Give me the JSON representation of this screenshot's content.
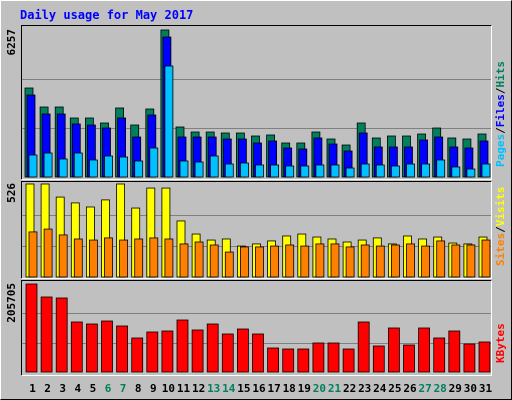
{
  "chart_data": [
    {
      "type": "bar",
      "title": "Daily usage for May 2017",
      "ylim": [
        0,
        6257
      ],
      "yticks": [
        6257
      ],
      "legend_separator": "/",
      "series": [
        {
          "name": "Pages",
          "color": "#00c0ff",
          "values": [
            936,
            1021,
            766,
            1021,
            724,
            894,
            851,
            681,
            1234,
            4724,
            681,
            638,
            894,
            553,
            596,
            511,
            511,
            468,
            468,
            511,
            511,
            383,
            553,
            511,
            468,
            553,
            553,
            724,
            426,
            340,
            553
          ]
        },
        {
          "name": "Files",
          "color": "#0000ff",
          "values": [
            3490,
            2681,
            2681,
            2256,
            2213,
            2085,
            2511,
            1702,
            2639,
            5958,
            1702,
            1702,
            1702,
            1617,
            1617,
            1447,
            1532,
            1234,
            1192,
            1660,
            1404,
            1107,
            1873,
            1277,
            1277,
            1277,
            1575,
            1702,
            1277,
            1234,
            1532
          ]
        },
        {
          "name": "Hits",
          "color": "#00805c",
          "values": [
            3788,
            2979,
            2979,
            2511,
            2511,
            2298,
            2937,
            2213,
            2894,
            6257,
            2128,
            1915,
            1915,
            1873,
            1873,
            1745,
            1788,
            1447,
            1447,
            1915,
            1617,
            1362,
            2298,
            1660,
            1745,
            1745,
            1830,
            2085,
            1660,
            1617,
            1830
          ]
        }
      ]
    },
    {
      "type": "bar",
      "ylim": [
        0,
        526
      ],
      "yticks": [
        526
      ],
      "legend_separator": "/",
      "series": [
        {
          "name": "Sites",
          "color": "#ff8000",
          "values": [
            255,
            271,
            238,
            215,
            209,
            221,
            209,
            215,
            221,
            215,
            187,
            198,
            181,
            141,
            170,
            170,
            175,
            181,
            175,
            187,
            187,
            170,
            181,
            175,
            181,
            187,
            175,
            204,
            181,
            181,
            209
          ]
        },
        {
          "name": "Visits",
          "color": "#ffff00",
          "values": [
            526,
            526,
            452,
            419,
            396,
            436,
            526,
            390,
            503,
            503,
            317,
            243,
            209,
            215,
            175,
            187,
            204,
            232,
            243,
            226,
            215,
            198,
            209,
            221,
            187,
            232,
            215,
            226,
            192,
            187,
            226
          ]
        }
      ]
    },
    {
      "type": "bar",
      "ylim": [
        0,
        205705
      ],
      "yticks": [
        205705
      ],
      "categories": [
        "1",
        "2",
        "3",
        "4",
        "5",
        "6",
        "7",
        "8",
        "9",
        "10",
        "11",
        "12",
        "13",
        "14",
        "15",
        "16",
        "17",
        "18",
        "19",
        "20",
        "21",
        "22",
        "23",
        "24",
        "25",
        "26",
        "27",
        "28",
        "29",
        "30",
        "31"
      ],
      "category_colors": [
        "#000000",
        "#000000",
        "#000000",
        "#000000",
        "#000000",
        "#00805c",
        "#00805c",
        "#000000",
        "#000000",
        "#000000",
        "#000000",
        "#000000",
        "#00805c",
        "#00805c",
        "#000000",
        "#000000",
        "#000000",
        "#000000",
        "#000000",
        "#00805c",
        "#00805c",
        "#000000",
        "#000000",
        "#000000",
        "#000000",
        "#000000",
        "#00805c",
        "#00805c",
        "#000000",
        "#000000",
        "#000000"
      ],
      "series": [
        {
          "name": "KBytes",
          "color": "#ff0000",
          "values": [
            205705,
            175320,
            172982,
            116880,
            112205,
            119218,
            107530,
            79478,
            93504,
            95842,
            121555,
            98179,
            112205,
            88829,
            100517,
            88829,
            56102,
            53765,
            53765,
            67790,
            67790,
            53765,
            116880,
            60778,
            102854,
            63115,
            102854,
            79478,
            95842,
            65453,
            70128
          ]
        }
      ]
    }
  ]
}
